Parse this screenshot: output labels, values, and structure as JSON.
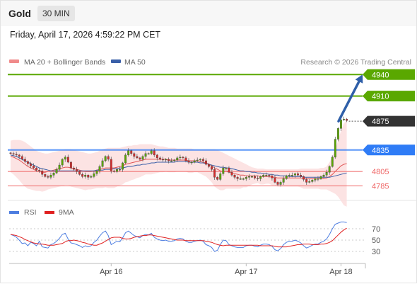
{
  "header": {
    "instrument": "Gold",
    "timeframe": "30 MIN"
  },
  "timestamp": "Friday, April 17, 2026 4:59:22 PM CET",
  "legend": {
    "bollinger": "MA 20 + Bollinger Bands",
    "ma50": "MA 50",
    "credit": "Research © 2026 Trading Central"
  },
  "colors": {
    "target": "#5aa800",
    "pivot": "#2f7cf6",
    "support": "#ef6464",
    "last": "#333333",
    "up_candle": "#5aa800",
    "down_candle": "#d62b2b",
    "band_fill": "#fbd9d9",
    "ma20": "#e05555",
    "ma50": "#3a5fa8",
    "arrow": "#2f5fa8",
    "rsi": "#4d7de0",
    "rsi_ma": "#e02020"
  },
  "chart_data": [
    {
      "type": "candlestick",
      "title": "",
      "ylim": [
        4748,
        4958
      ],
      "levels": [
        {
          "label": "4940",
          "value": 4940,
          "kind": "target"
        },
        {
          "label": "4910",
          "value": 4910,
          "kind": "target"
        },
        {
          "label": "4875",
          "value": 4875,
          "kind": "last"
        },
        {
          "label": "4835",
          "value": 4835,
          "kind": "pivot"
        },
        {
          "label": "4805",
          "value": 4805,
          "kind": "support"
        },
        {
          "label": "4785",
          "value": 4785,
          "kind": "support"
        }
      ],
      "x_ticks": [
        "Apr 16",
        "Apr 17",
        "Apr 18"
      ],
      "x_tick_index": [
        35,
        82,
        115
      ],
      "n_slots": 124,
      "closes": [
        4830,
        4829,
        4828,
        4826,
        4822,
        4819,
        4816,
        4813,
        4810,
        4807,
        4806,
        4801,
        4798,
        4797,
        4800,
        4803,
        4808,
        4814,
        4822,
        4825,
        4818,
        4810,
        4808,
        4805,
        4801,
        4798,
        4800,
        4797,
        4798,
        4802,
        4806,
        4812,
        4820,
        4826,
        4822,
        4806,
        4805,
        4808,
        4808,
        4817,
        4828,
        4834,
        4830,
        4826,
        4824,
        4822,
        4826,
        4830,
        4830,
        4834,
        4828,
        4824,
        4822,
        4821,
        4822,
        4820,
        4820,
        4821,
        4824,
        4825,
        4824,
        4820,
        4818,
        4818,
        4820,
        4821,
        4822,
        4820,
        4815,
        4812,
        4808,
        4797,
        4794,
        4802,
        4810,
        4810,
        4804,
        4800,
        4797,
        4795,
        4795,
        4795,
        4797,
        4798,
        4798,
        4796,
        4795,
        4798,
        4800,
        4800,
        4799,
        4796,
        4790,
        4787,
        4790,
        4795,
        4799,
        4800,
        4800,
        4802,
        4800,
        4798,
        4794,
        4790,
        4791,
        4793,
        4795,
        4795,
        4798,
        4800,
        4804,
        4812,
        4825,
        4850,
        4865,
        4877,
        4878,
        4876
      ],
      "ma20": [
        4826,
        4825,
        4823,
        4821,
        4818,
        4815,
        4812,
        4810,
        4808,
        4806,
        4805,
        4804,
        4804,
        4805,
        4806,
        4807,
        4808,
        4809,
        4810,
        4811,
        4811,
        4810,
        4809,
        4808,
        4807,
        4806,
        4805,
        4805,
        4805,
        4806,
        4807,
        4808,
        4809,
        4810,
        4810,
        4810,
        4810,
        4811,
        4812,
        4813,
        4815,
        4816,
        4817,
        4818,
        4819,
        4820,
        4821,
        4822,
        4822,
        4822,
        4822,
        4822,
        4822,
        4822,
        4822,
        4821,
        4821,
        4821,
        4821,
        4821,
        4821,
        4821,
        4820,
        4820,
        4820,
        4820,
        4819,
        4818,
        4817,
        4815,
        4813,
        4810,
        4808,
        4806,
        4805,
        4805,
        4804,
        4803,
        4802,
        4801,
        4800,
        4800,
        4799,
        4799,
        4799,
        4799,
        4799,
        4798,
        4798,
        4798,
        4798,
        4797,
        4797,
        4796,
        4796,
        4796,
        4796,
        4796,
        4796,
        4796,
        4796,
        4796,
        4795,
        4795,
        4795,
        4795,
        4795,
        4795,
        4795,
        4795,
        4796,
        4798,
        4801,
        4805,
        4809,
        4813,
        4815,
        4816
      ],
      "bb_upper": [
        4848,
        4849,
        4849,
        4849,
        4848,
        4846,
        4843,
        4840,
        4837,
        4834,
        4832,
        4831,
        4830,
        4830,
        4831,
        4832,
        4833,
        4834,
        4835,
        4836,
        4836,
        4836,
        4835,
        4834,
        4833,
        4832,
        4831,
        4830,
        4830,
        4831,
        4832,
        4834,
        4836,
        4837,
        4838,
        4838,
        4838,
        4838,
        4838,
        4839,
        4840,
        4841,
        4841,
        4842,
        4842,
        4843,
        4843,
        4843,
        4843,
        4843,
        4842,
        4841,
        4840,
        4840,
        4839,
        4838,
        4838,
        4838,
        4837,
        4837,
        4837,
        4837,
        4837,
        4837,
        4836,
        4836,
        4836,
        4836,
        4836,
        4836,
        4836,
        4836,
        4835,
        4833,
        4831,
        4829,
        4827,
        4825,
        4823,
        4821,
        4819,
        4817,
        4815,
        4813,
        4811,
        4810,
        4809,
        4809,
        4809,
        4808,
        4808,
        4808,
        4808,
        4808,
        4808,
        4808,
        4808,
        4808,
        4808,
        4808,
        4808,
        4809,
        4809,
        4809,
        4809,
        4809,
        4809,
        4809,
        4810,
        4810,
        4812,
        4818,
        4826,
        4836,
        4848,
        4862,
        4872,
        4876
      ],
      "bb_lower": [
        4804,
        4801,
        4797,
        4793,
        4788,
        4784,
        4781,
        4780,
        4779,
        4778,
        4778,
        4777,
        4778,
        4780,
        4781,
        4782,
        4783,
        4784,
        4785,
        4786,
        4786,
        4784,
        4783,
        4782,
        4781,
        4780,
        4779,
        4780,
        4780,
        4781,
        4782,
        4782,
        4782,
        4783,
        4782,
        4782,
        4782,
        4784,
        4786,
        4787,
        4790,
        4791,
        4793,
        4794,
        4796,
        4797,
        4799,
        4801,
        4801,
        4801,
        4802,
        4803,
        4804,
        4804,
        4805,
        4804,
        4804,
        4804,
        4805,
        4805,
        4805,
        4805,
        4803,
        4803,
        4804,
        4804,
        4802,
        4800,
        4798,
        4794,
        4790,
        4784,
        4781,
        4779,
        4779,
        4781,
        4781,
        4781,
        4781,
        4781,
        4781,
        4783,
        4783,
        4785,
        4787,
        4788,
        4789,
        4787,
        4787,
        4788,
        4788,
        4786,
        4786,
        4784,
        4784,
        4784,
        4784,
        4784,
        4784,
        4784,
        4784,
        4783,
        4781,
        4781,
        4781,
        4781,
        4781,
        4781,
        4780,
        4780,
        4780,
        4778,
        4776,
        4774,
        4770,
        4764,
        4758,
        4756
      ],
      "ma50": [
        4828,
        4827,
        4826,
        4824,
        4822,
        4820,
        4818,
        4816,
        4814,
        4812,
        4810,
        4809,
        4808,
        4807,
        4806,
        4806,
        4806,
        4806,
        4806,
        4806,
        4806,
        4806,
        4806,
        4806,
        4806,
        4806,
        4806,
        4806,
        4806,
        4806,
        4807,
        4807,
        4807,
        4808,
        4808,
        4808,
        4809,
        4809,
        4810,
        4810,
        4811,
        4812,
        4812,
        4813,
        4814,
        4814,
        4815,
        4815,
        4816,
        4817,
        4817,
        4818,
        4818,
        4818,
        4818,
        4818,
        4818,
        4818,
        4819,
        4819,
        4819,
        4819,
        4818,
        4818,
        4818,
        4818,
        4817,
        4817,
        4816,
        4815,
        4814,
        4813,
        4812,
        4811,
        4811,
        4810,
        4810,
        4809,
        4808,
        4807,
        4806,
        4806,
        4805,
        4805,
        4804,
        4804,
        4803,
        4803,
        4802,
        4802,
        4801,
        4801,
        4800,
        4800,
        4799,
        4799,
        4799,
        4798,
        4798,
        4798,
        4798,
        4798,
        4797,
        4797,
        4797,
        4797,
        4797,
        4797,
        4797,
        4797,
        4797,
        4797,
        4798,
        4799,
        4800,
        4801,
        4802,
        4803
      ],
      "projection": {
        "from_value": 4875,
        "to_value": 4940
      }
    },
    {
      "type": "line",
      "title": "",
      "ylim": [
        10,
        90
      ],
      "y_ticks": [
        70,
        50,
        30
      ],
      "series": [
        {
          "name": "RSI",
          "values": [
            60,
            58,
            55,
            50,
            44,
            45,
            40,
            46,
            44,
            40,
            48,
            38,
            37,
            36,
            42,
            44,
            48,
            53,
            60,
            62,
            52,
            45,
            44,
            42,
            40,
            37,
            40,
            38,
            40,
            46,
            50,
            57,
            63,
            66,
            58,
            42,
            45,
            48,
            47,
            54,
            63,
            66,
            62,
            58,
            56,
            54,
            58,
            60,
            59,
            62,
            55,
            52,
            50,
            49,
            50,
            48,
            48,
            49,
            52,
            53,
            52,
            48,
            46,
            46,
            48,
            49,
            50,
            48,
            42,
            40,
            37,
            30,
            32,
            42,
            50,
            49,
            42,
            40,
            38,
            37,
            37,
            37,
            40,
            41,
            41,
            39,
            38,
            41,
            43,
            43,
            42,
            39,
            33,
            31,
            35,
            42,
            46,
            48,
            48,
            50,
            48,
            45,
            40,
            36,
            38,
            41,
            43,
            43,
            46,
            48,
            52,
            60,
            70,
            78,
            80,
            82,
            82,
            81
          ]
        },
        {
          "name": "9MA",
          "values": [
            60,
            59,
            58,
            56,
            54,
            51,
            49,
            47,
            45,
            44,
            43,
            43,
            42,
            41,
            41,
            41,
            42,
            43,
            44,
            47,
            49,
            49,
            50,
            49,
            48,
            46,
            45,
            43,
            42,
            41,
            41,
            43,
            45,
            48,
            51,
            54,
            55,
            55,
            55,
            53,
            52,
            52,
            53,
            55,
            56,
            57,
            58,
            58,
            59,
            59,
            58,
            57,
            56,
            55,
            54,
            53,
            52,
            51,
            50,
            50,
            50,
            49,
            49,
            49,
            49,
            49,
            49,
            49,
            48,
            47,
            46,
            44,
            42,
            41,
            40,
            41,
            41,
            41,
            41,
            41,
            41,
            41,
            41,
            41,
            41,
            41,
            41,
            40,
            40,
            40,
            40,
            40,
            39,
            38,
            38,
            38,
            38,
            39,
            40,
            41,
            42,
            42,
            43,
            43,
            43,
            42,
            42,
            42,
            43,
            43,
            44,
            46,
            49,
            54,
            59,
            64,
            68,
            71
          ]
        }
      ]
    }
  ]
}
